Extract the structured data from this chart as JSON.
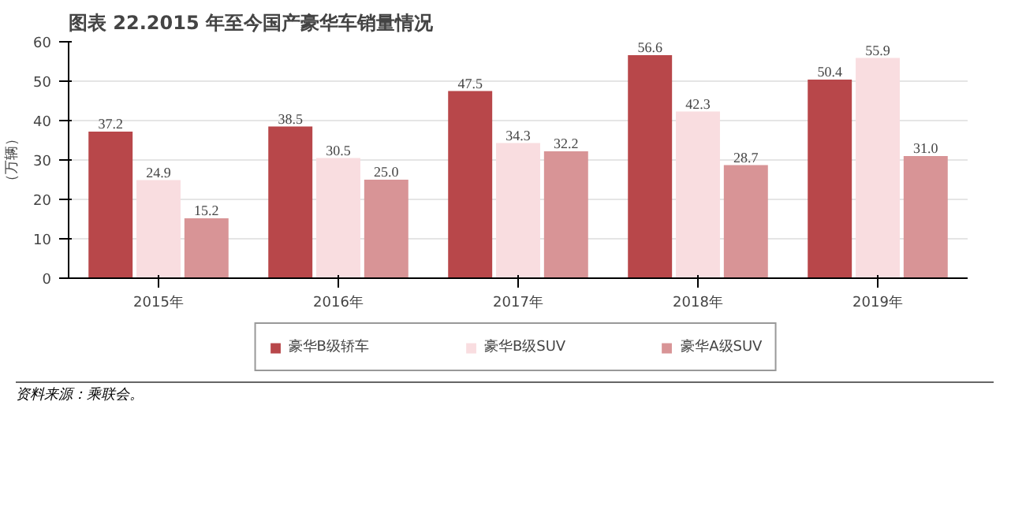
{
  "chart_data": {
    "type": "bar",
    "title": "图表 22.2015 年至今国产豪华车销量情况",
    "ylabel": "（万辆）",
    "categories": [
      "2015年",
      "2016年",
      "2017年",
      "2018年",
      "2019年"
    ],
    "series": [
      {
        "name": "豪华B级轿车",
        "color": "#b8474a",
        "values": [
          37.2,
          38.5,
          47.5,
          56.6,
          50.4
        ]
      },
      {
        "name": "豪华B级SUV",
        "color": "#f9dde0",
        "values": [
          24.9,
          30.5,
          34.3,
          42.3,
          55.9
        ]
      },
      {
        "name": "豪华A级SUV",
        "color": "#d89496",
        "values": [
          15.2,
          25.0,
          32.2,
          28.7,
          31.0
        ]
      }
    ],
    "value_labels": [
      [
        "37.2",
        "38.5",
        "47.5",
        "56.6",
        "50.4"
      ],
      [
        "24.9",
        "30.5",
        "34.3",
        "42.3",
        "55.9"
      ],
      [
        "15.2",
        "25.0",
        "32.2",
        "28.7",
        "31.0"
      ]
    ],
    "ylim": [
      0,
      60
    ],
    "yticks": [
      0,
      10,
      20,
      30,
      40,
      50,
      60
    ],
    "grid": "y",
    "legend": "bottom",
    "annotations": [
      "资料来源：乘联会。"
    ]
  }
}
